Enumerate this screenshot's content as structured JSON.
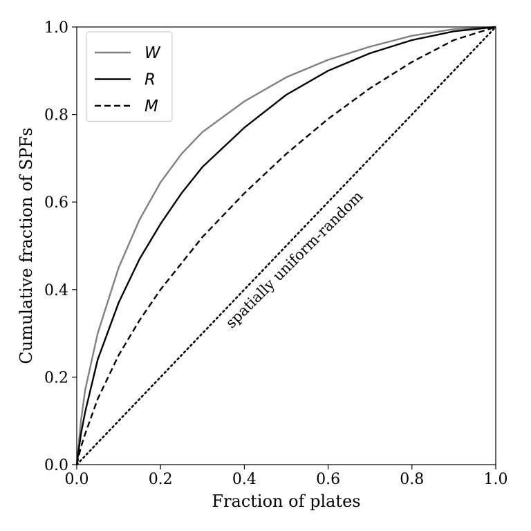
{
  "chart_data": {
    "type": "line",
    "xlabel": "Fraction of plates",
    "ylabel": "Cumulative fraction of SPFs",
    "xlim": [
      0.0,
      1.0
    ],
    "ylim": [
      0.0,
      1.0
    ],
    "x_ticks": [
      "0.0",
      "0.2",
      "0.4",
      "0.6",
      "0.8",
      "1.0"
    ],
    "y_ticks": [
      "0.0",
      "0.2",
      "0.4",
      "0.6",
      "0.8",
      "1.0"
    ],
    "grid": false,
    "legend_position": "top-left",
    "series": [
      {
        "name": "W",
        "color": "#808080",
        "dash": "solid",
        "x": [
          0,
          0.01,
          0.02,
          0.05,
          0.1,
          0.15,
          0.2,
          0.25,
          0.3,
          0.4,
          0.5,
          0.6,
          0.7,
          0.8,
          0.9,
          1.0
        ],
        "y": [
          0,
          0.1,
          0.17,
          0.3,
          0.45,
          0.56,
          0.645,
          0.71,
          0.76,
          0.83,
          0.885,
          0.925,
          0.955,
          0.98,
          0.995,
          1.0
        ]
      },
      {
        "name": "R",
        "color": "#000000",
        "dash": "solid",
        "x": [
          0,
          0.01,
          0.02,
          0.05,
          0.1,
          0.15,
          0.2,
          0.25,
          0.3,
          0.4,
          0.5,
          0.6,
          0.7,
          0.8,
          0.9,
          1.0
        ],
        "y": [
          0,
          0.07,
          0.12,
          0.24,
          0.37,
          0.47,
          0.55,
          0.62,
          0.68,
          0.77,
          0.845,
          0.9,
          0.94,
          0.97,
          0.99,
          1.0
        ]
      },
      {
        "name": "M",
        "color": "#000000",
        "dash": "dashed",
        "x": [
          0,
          0.01,
          0.02,
          0.05,
          0.1,
          0.15,
          0.2,
          0.25,
          0.3,
          0.4,
          0.5,
          0.6,
          0.7,
          0.8,
          0.9,
          1.0
        ],
        "y": [
          0,
          0.04,
          0.07,
          0.15,
          0.25,
          0.33,
          0.4,
          0.46,
          0.52,
          0.62,
          0.71,
          0.79,
          0.86,
          0.92,
          0.97,
          1.0
        ]
      },
      {
        "name": "",
        "color": "#000000",
        "dash": "dotted",
        "x": [
          0,
          1.0
        ],
        "y": [
          0,
          1.0
        ]
      }
    ],
    "annotations": [
      {
        "text": "spatially uniform-random",
        "x": 0.37,
        "y": 0.31,
        "angle_deg": 45
      }
    ]
  }
}
